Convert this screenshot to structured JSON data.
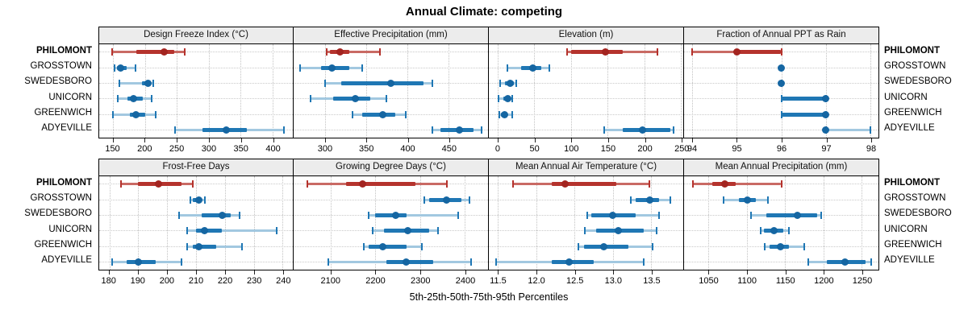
{
  "title": "Annual Climate: competing",
  "caption": "5th-25th-50th-75th-95th Percentiles",
  "locations": [
    "PHILOMONT",
    "GROSSTOWN",
    "SWEDESBORO",
    "UNICORN",
    "GREENWICH",
    "ADYEVILLE"
  ],
  "highlight_location": "PHILOMONT",
  "colors": {
    "highlight_whisker": "#c96a64",
    "highlight_box": "#b5332d",
    "highlight_dot": "#a32420",
    "base_whisker": "#a2c8e0",
    "base_box": "#1f77b4",
    "base_dot": "#1566a2",
    "grid": "#c5c5c5",
    "header_bg": "#ececec",
    "border": "#000000"
  },
  "percentile_order": [
    "p5",
    "p25",
    "p50",
    "p75",
    "p95"
  ],
  "chart_data": [
    {
      "type": "dot-interval",
      "panel_title": "Design Freeze Index (°C)",
      "xlim": [
        128,
        432
      ],
      "tick_values": [
        150,
        200,
        250,
        300,
        350,
        400
      ],
      "tick_labels": [
        "150",
        "200",
        "250",
        "300",
        "350",
        "400"
      ],
      "series": [
        {
          "name": "PHILOMONT",
          "values": [
            148,
            186,
            230,
            246,
            262
          ]
        },
        {
          "name": "GROSSTOWN",
          "values": [
            152,
            156,
            162,
            171,
            185
          ]
        },
        {
          "name": "SWEDESBORO",
          "values": [
            160,
            195,
            204,
            209,
            213
          ]
        },
        {
          "name": "UNICORN",
          "values": [
            157,
            172,
            182,
            196,
            210
          ]
        },
        {
          "name": "GREENWICH",
          "values": [
            150,
            176,
            186,
            200,
            217
          ]
        },
        {
          "name": "ADYEVILLE",
          "values": [
            247,
            290,
            327,
            360,
            418
          ]
        }
      ]
    },
    {
      "type": "dot-interval",
      "panel_title": "Effective Precipitation (mm)",
      "xlim": [
        262,
        498
      ],
      "tick_values": [
        300,
        350,
        400,
        450
      ],
      "tick_labels": [
        "300",
        "350",
        "400",
        "450"
      ],
      "series": [
        {
          "name": "PHILOMONT",
          "values": [
            302,
            306,
            318,
            330,
            367
          ]
        },
        {
          "name": "GROSSTOWN",
          "values": [
            270,
            295,
            309,
            330,
            345
          ]
        },
        {
          "name": "SWEDESBORO",
          "values": [
            300,
            320,
            380,
            420,
            430
          ]
        },
        {
          "name": "UNICORN",
          "values": [
            283,
            310,
            337,
            355,
            375
          ]
        },
        {
          "name": "GREENWICH",
          "values": [
            333,
            345,
            370,
            385,
            398
          ]
        },
        {
          "name": "ADYEVILLE",
          "values": [
            430,
            440,
            463,
            480,
            490
          ]
        }
      ]
    },
    {
      "type": "dot-interval",
      "panel_title": "Elevation (m)",
      "xlim": [
        -12,
        253
      ],
      "tick_values": [
        0,
        50,
        100,
        150,
        200,
        250
      ],
      "tick_labels": [
        "0",
        "50",
        "100",
        "150",
        "200",
        "250"
      ],
      "series": [
        {
          "name": "PHILOMONT",
          "values": [
            95,
            100,
            147,
            170,
            218
          ]
        },
        {
          "name": "GROSSTOWN",
          "values": [
            13,
            32,
            48,
            60,
            71
          ]
        },
        {
          "name": "SWEDESBORO",
          "values": [
            3,
            10,
            17,
            22,
            25
          ]
        },
        {
          "name": "UNICORN",
          "values": [
            1,
            8,
            14,
            18,
            20
          ]
        },
        {
          "name": "GREENWICH",
          "values": [
            2,
            5,
            9,
            13,
            20
          ]
        },
        {
          "name": "ADYEVILLE",
          "values": [
            145,
            170,
            198,
            235,
            240
          ]
        }
      ]
    },
    {
      "type": "dot-interval",
      "panel_title": "Fraction of Annual PPT as Rain",
      "xlim": [
        93.82,
        98.18
      ],
      "tick_values": [
        94,
        95,
        96,
        97,
        98
      ],
      "tick_labels": [
        "94",
        "95",
        "96",
        "97",
        "98"
      ],
      "series": [
        {
          "name": "PHILOMONT",
          "values": [
            94,
            95,
            95,
            96,
            96
          ]
        },
        {
          "name": "GROSSTOWN",
          "values": [
            96,
            96,
            96,
            96,
            96
          ]
        },
        {
          "name": "SWEDESBORO",
          "values": [
            96,
            96,
            96,
            96,
            96
          ]
        },
        {
          "name": "UNICORN",
          "values": [
            96,
            96,
            97,
            97,
            97
          ]
        },
        {
          "name": "GREENWICH",
          "values": [
            96,
            96,
            97,
            97,
            97
          ]
        },
        {
          "name": "ADYEVILLE",
          "values": [
            97,
            97,
            97,
            97,
            98
          ]
        }
      ]
    },
    {
      "type": "dot-interval",
      "panel_title": "Frost-Free Days",
      "xlim": [
        176.5,
        243.5
      ],
      "tick_values": [
        180,
        190,
        200,
        210,
        220,
        230,
        240
      ],
      "tick_labels": [
        "180",
        "190",
        "200",
        "210",
        "220",
        "230",
        "240"
      ],
      "series": [
        {
          "name": "PHILOMONT",
          "values": [
            184,
            190,
            197,
            205,
            209
          ]
        },
        {
          "name": "GROSSTOWN",
          "values": [
            208,
            209,
            211,
            212,
            213
          ]
        },
        {
          "name": "SWEDESBORO",
          "values": [
            204,
            212,
            219,
            222,
            225
          ]
        },
        {
          "name": "UNICORN",
          "values": [
            207,
            210,
            213,
            219,
            238
          ]
        },
        {
          "name": "GREENWICH",
          "values": [
            207,
            209,
            211,
            217,
            226
          ]
        },
        {
          "name": "ADYEVILLE",
          "values": [
            181,
            186,
            190,
            196,
            205
          ]
        }
      ]
    },
    {
      "type": "dot-interval",
      "panel_title": "Growing Degree Days (°C)",
      "xlim": [
        2018,
        2452
      ],
      "tick_values": [
        2100,
        2200,
        2300,
        2400
      ],
      "tick_labels": [
        "2100",
        "2200",
        "2300",
        "2400"
      ],
      "series": [
        {
          "name": "PHILOMONT",
          "values": [
            2048,
            2135,
            2172,
            2290,
            2360
          ]
        },
        {
          "name": "GROSSTOWN",
          "values": [
            2310,
            2320,
            2360,
            2392,
            2410
          ]
        },
        {
          "name": "SWEDESBORO",
          "values": [
            2185,
            2200,
            2245,
            2270,
            2385
          ]
        },
        {
          "name": "UNICORN",
          "values": [
            2195,
            2220,
            2272,
            2320,
            2340
          ]
        },
        {
          "name": "GREENWICH",
          "values": [
            2175,
            2185,
            2217,
            2270,
            2305
          ]
        },
        {
          "name": "ADYEVILLE",
          "values": [
            2095,
            2225,
            2270,
            2330,
            2415
          ]
        }
      ]
    },
    {
      "type": "dot-interval",
      "panel_title": "Mean Annual Air Temperature (°C)",
      "xlim": [
        11.38,
        13.92
      ],
      "tick_values": [
        11.5,
        12.0,
        12.5,
        13.0,
        13.5
      ],
      "tick_labels": [
        "11.5",
        "12.0",
        "12.5",
        "13.0",
        "13.5"
      ],
      "series": [
        {
          "name": "PHILOMONT",
          "values": [
            11.7,
            12.2,
            12.38,
            13.05,
            13.48
          ]
        },
        {
          "name": "GROSSTOWN",
          "values": [
            13.23,
            13.3,
            13.48,
            13.6,
            13.75
          ]
        },
        {
          "name": "SWEDESBORO",
          "values": [
            12.67,
            12.72,
            13.0,
            13.3,
            13.6
          ]
        },
        {
          "name": "UNICORN",
          "values": [
            12.63,
            12.78,
            13.07,
            13.4,
            13.57
          ]
        },
        {
          "name": "GREENWICH",
          "values": [
            12.55,
            12.62,
            12.88,
            13.2,
            13.52
          ]
        },
        {
          "name": "ADYEVILLE",
          "values": [
            11.48,
            12.2,
            12.43,
            12.75,
            13.4
          ]
        }
      ]
    },
    {
      "type": "dot-interval",
      "panel_title": "Mean Annual Precipitation (mm)",
      "xlim": [
        1018,
        1272
      ],
      "tick_values": [
        1050,
        1100,
        1150,
        1200,
        1250
      ],
      "tick_labels": [
        "1050",
        "1100",
        "1150",
        "1200",
        "1250"
      ],
      "series": [
        {
          "name": "PHILOMONT",
          "values": [
            1030,
            1055,
            1071,
            1085,
            1145
          ]
        },
        {
          "name": "GROSSTOWN",
          "values": [
            1070,
            1090,
            1101,
            1112,
            1128
          ]
        },
        {
          "name": "SWEDESBORO",
          "values": [
            1105,
            1125,
            1166,
            1192,
            1197
          ]
        },
        {
          "name": "UNICORN",
          "values": [
            1118,
            1122,
            1136,
            1148,
            1155
          ]
        },
        {
          "name": "GREENWICH",
          "values": [
            1123,
            1130,
            1144,
            1155,
            1175
          ]
        },
        {
          "name": "ADYEVILLE",
          "values": [
            1180,
            1205,
            1228,
            1255,
            1262
          ]
        }
      ]
    }
  ]
}
